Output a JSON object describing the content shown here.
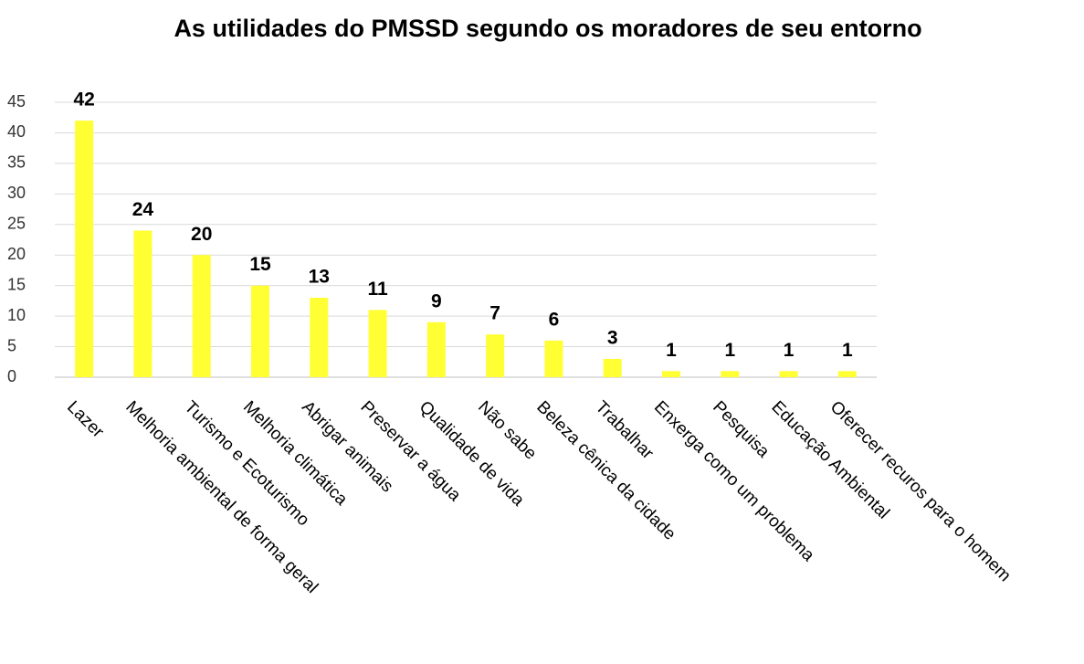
{
  "chart_data": {
    "type": "bar",
    "title": "As utilidades do PMSSD segundo os moradores de seu entorno",
    "categories": [
      "Lazer",
      "Melhoria ambiental de forma geral",
      "Turismo e Ecoturismo",
      "Melhoria climática",
      "Abrigar animais",
      "Preservar a água",
      "Qualidade de vida",
      "Não sabe",
      "Beleza cênica da cidade",
      "Trabalhar",
      "Enxerga como um problema",
      "Pesquisa",
      "Educação Ambiental",
      "Oferecer recuros para o homem"
    ],
    "values": [
      42,
      24,
      20,
      15,
      13,
      11,
      9,
      7,
      6,
      3,
      1,
      1,
      1,
      1
    ],
    "color": "#ffff33",
    "ylim": [
      0,
      45
    ],
    "yticks": [
      0,
      5,
      10,
      15,
      20,
      25,
      30,
      35,
      40,
      45
    ],
    "grid": true
  }
}
